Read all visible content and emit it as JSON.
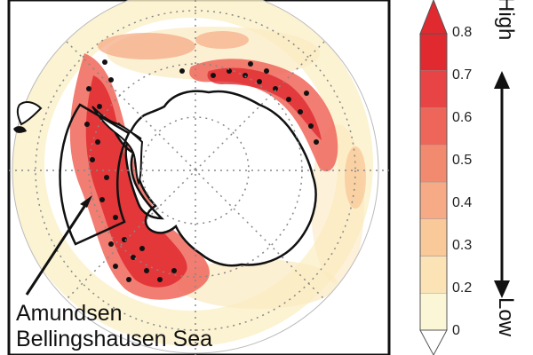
{
  "map": {
    "region": "Antarctica",
    "annotation_lines": [
      "Amundsen",
      "Bellingshausen Sea"
    ]
  },
  "legend": {
    "ticks": [
      "0.8",
      "0.7",
      "0.6",
      "0.5",
      "0.4",
      "0.3",
      "0.2",
      "0"
    ],
    "high_label": "High",
    "low_label": "Low",
    "colors": [
      "#fbf6d6",
      "#fbe3b6",
      "#f9c99a",
      "#f6ab86",
      "#f28a70",
      "#ee665a",
      "#e84445",
      "#e02a30"
    ]
  }
}
